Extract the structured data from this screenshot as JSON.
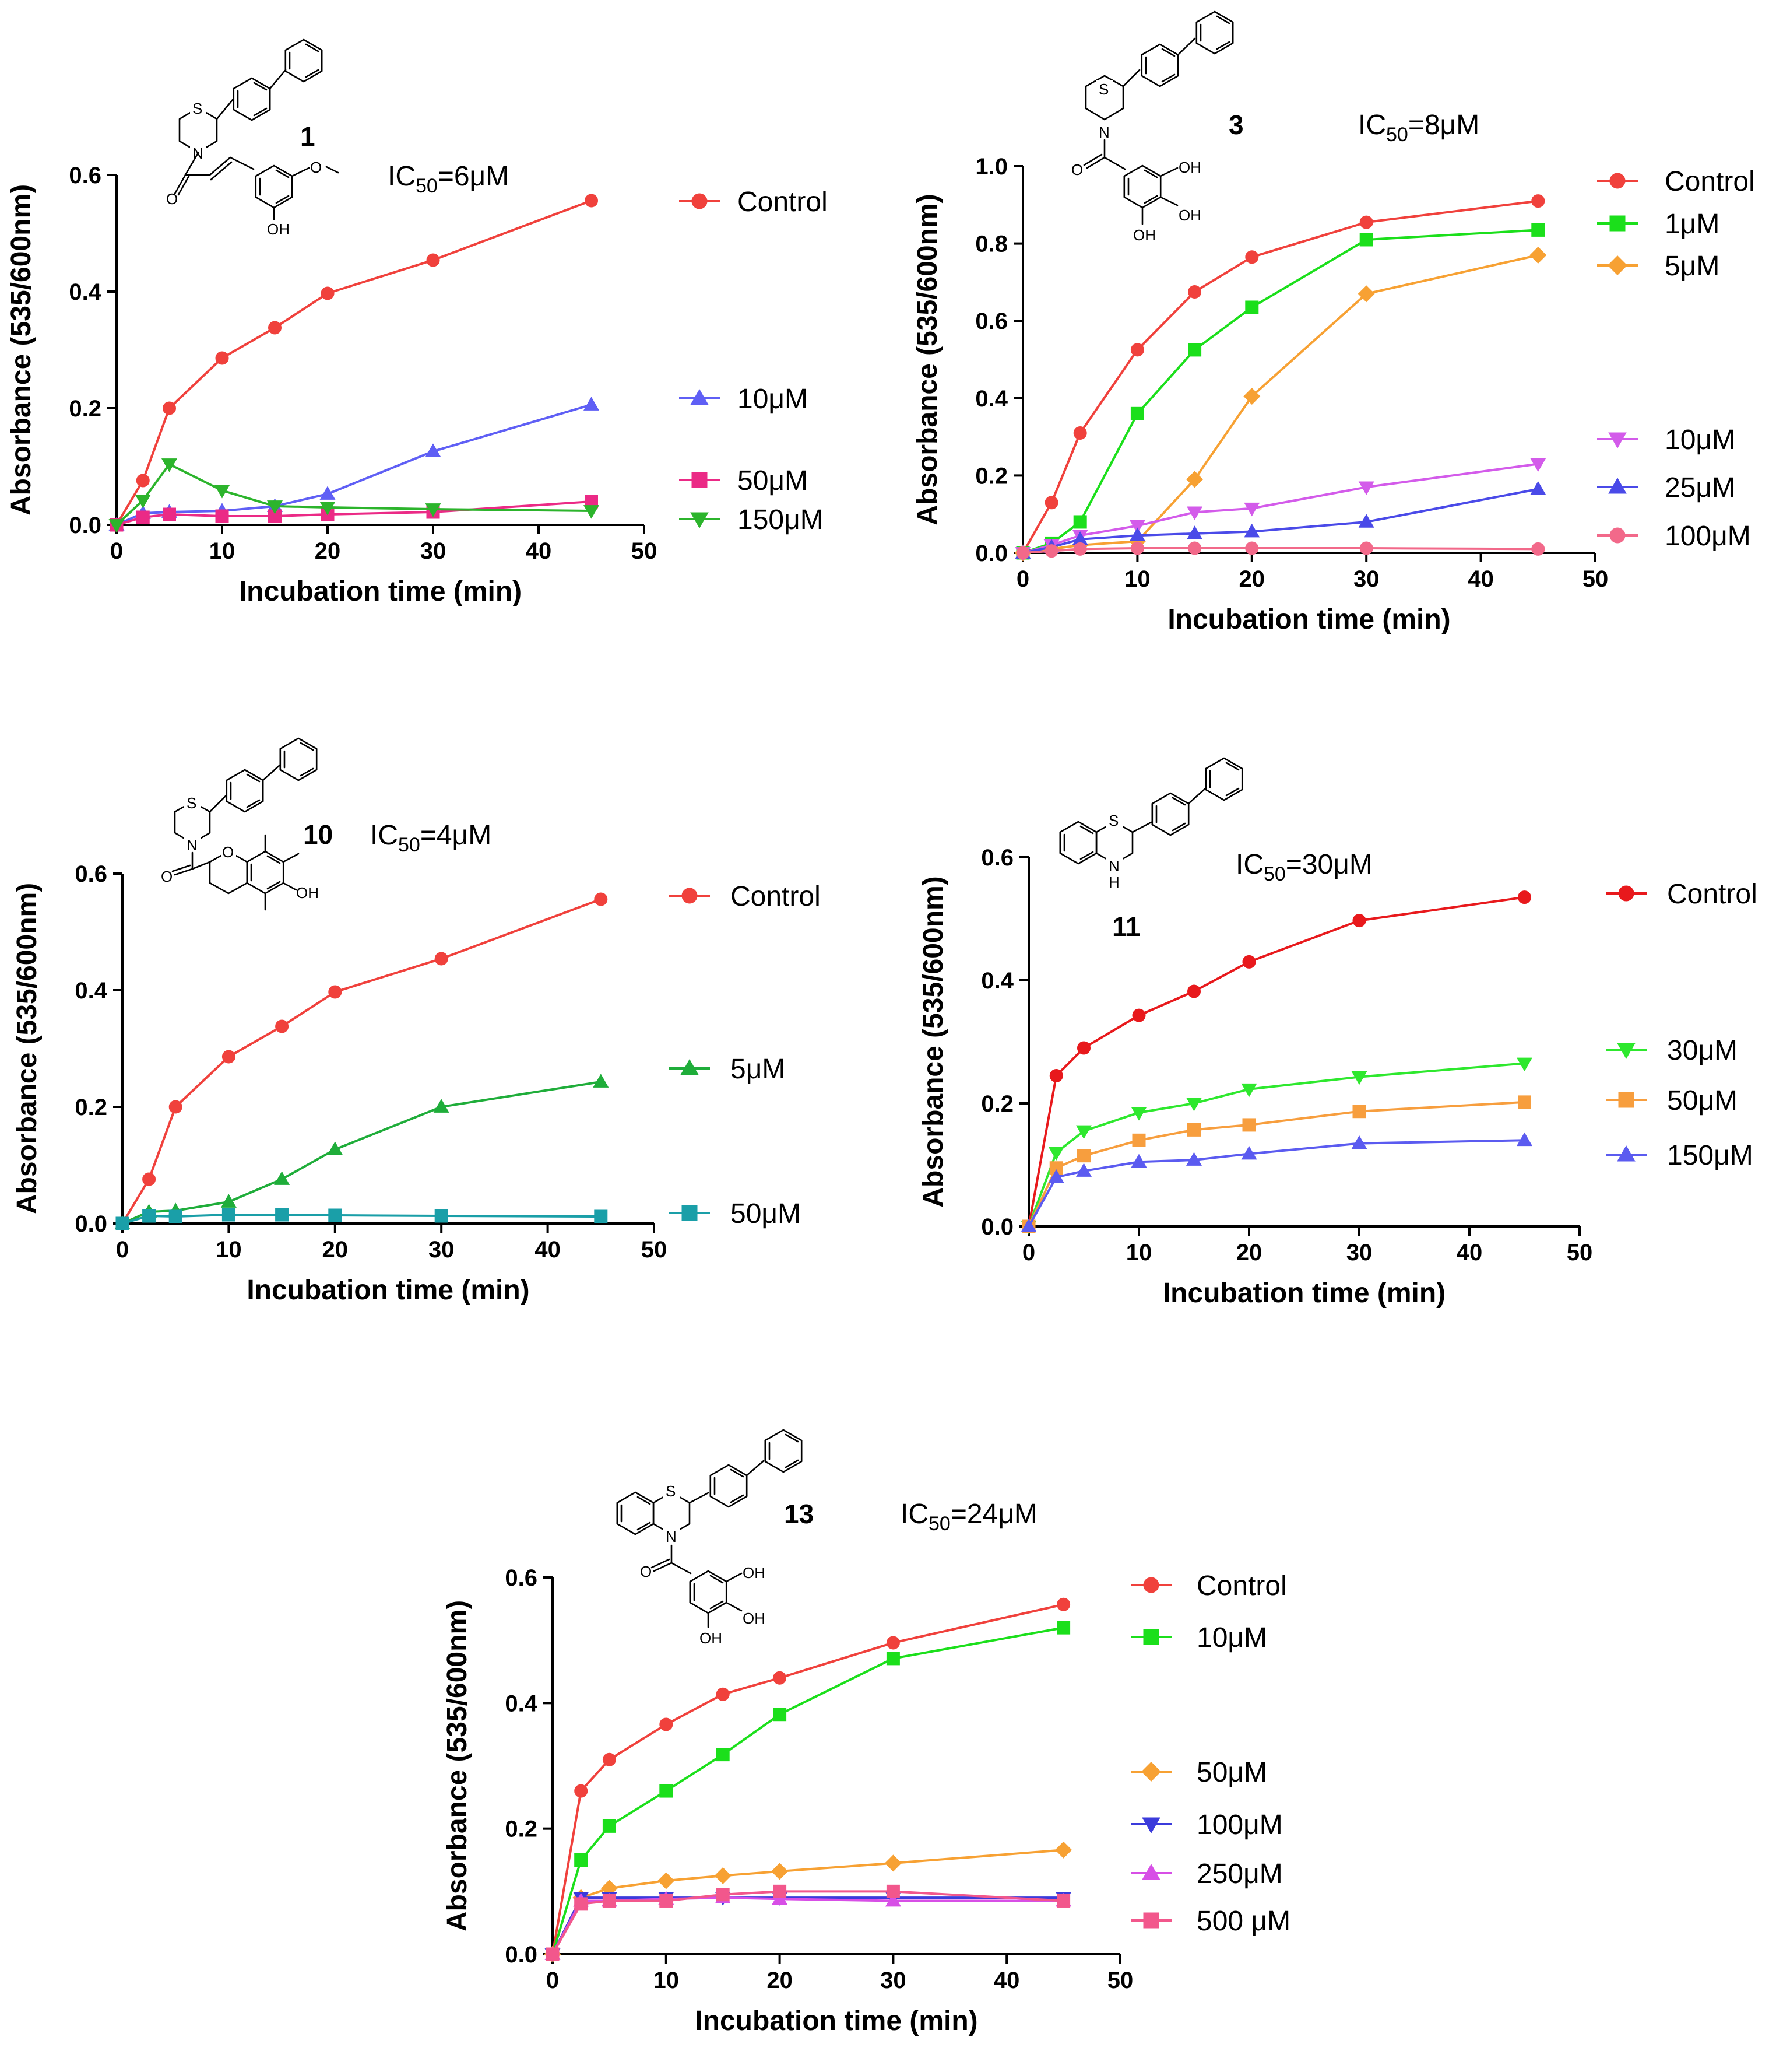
{
  "chart_data": [
    {
      "type": "line",
      "compound": "1",
      "ic50": {
        "prefix": "IC",
        "sub": "50",
        "value": "=6μM"
      },
      "xlabel": "Incubation time (min)",
      "ylabel": "Absorbance (535/600nm)",
      "xlim": [
        0,
        50
      ],
      "ylim": [
        0,
        0.6
      ],
      "xticks": [
        0,
        10,
        20,
        30,
        40,
        50
      ],
      "yticks": [
        0.0,
        0.2,
        0.4,
        0.6
      ],
      "ytick_labels": [
        "0.0",
        "0.2",
        "0.4",
        "0.6"
      ],
      "x": [
        0,
        2.5,
        5,
        10,
        15,
        20,
        30,
        45
      ],
      "series": [
        {
          "name": "Control",
          "color": "#f0413c",
          "marker": "circle",
          "values": [
            0,
            0.076,
            0.2,
            0.286,
            0.338,
            0.397,
            0.454,
            0.556
          ]
        },
        {
          "name": "10μM",
          "color": "#5f5ff5",
          "marker": "triangle-up",
          "values": [
            0,
            0.02,
            0.022,
            0.024,
            0.032,
            0.053,
            0.126,
            0.206
          ]
        },
        {
          "name": "50μM",
          "color": "#eb2a86",
          "marker": "square",
          "values": [
            0,
            0.013,
            0.018,
            0.015,
            0.015,
            0.018,
            0.022,
            0.04
          ]
        },
        {
          "name": "150μM",
          "color": "#2cb42c",
          "marker": "triangle-down",
          "values": [
            0,
            0.042,
            0.104,
            0.059,
            0.032,
            0.03,
            0.027,
            0.024
          ]
        }
      ]
    },
    {
      "type": "line",
      "compound": "3",
      "ic50": {
        "prefix": "IC",
        "sub": "50",
        "value": "=8μM"
      },
      "xlabel": "Incubation time (min)",
      "ylabel": "Absorbance (535/600nm)",
      "xlim": [
        0,
        50
      ],
      "ylim": [
        0,
        1.0
      ],
      "xticks": [
        0,
        10,
        20,
        30,
        40,
        50
      ],
      "yticks": [
        0.0,
        0.2,
        0.4,
        0.6,
        0.8,
        1.0
      ],
      "ytick_labels": [
        "0.0",
        "0.2",
        "0.4",
        "0.6",
        "0.8",
        "1.0"
      ],
      "x": [
        0,
        2.5,
        5,
        10,
        15,
        20,
        30,
        45
      ],
      "series": [
        {
          "name": "Control",
          "color": "#f0413c",
          "marker": "circle",
          "values": [
            0,
            0.13,
            0.31,
            0.525,
            0.675,
            0.765,
            0.855,
            0.91
          ]
        },
        {
          "name": "1μM",
          "color": "#1bdf1b",
          "marker": "square",
          "values": [
            0,
            0.025,
            0.08,
            0.36,
            0.525,
            0.635,
            0.81,
            0.835
          ]
        },
        {
          "name": "5μM",
          "color": "#f7a133",
          "marker": "diamond",
          "values": [
            0,
            0.01,
            0.02,
            0.03,
            0.19,
            0.405,
            0.67,
            0.77
          ]
        },
        {
          "name": "10μM",
          "color": "#d35bea",
          "marker": "triangle-down",
          "values": [
            0,
            0.02,
            0.045,
            0.07,
            0.105,
            0.115,
            0.17,
            0.23
          ]
        },
        {
          "name": "25μM",
          "color": "#4a4ae8",
          "marker": "triangle-up",
          "values": [
            0,
            0.015,
            0.035,
            0.045,
            0.05,
            0.055,
            0.08,
            0.165
          ]
        },
        {
          "name": "100μM",
          "color": "#f2698a",
          "marker": "circle",
          "values": [
            0,
            0.005,
            0.01,
            0.012,
            0.012,
            0.012,
            0.012,
            0.01
          ]
        }
      ]
    },
    {
      "type": "line",
      "compound": "10",
      "ic50": {
        "prefix": "IC",
        "sub": "50",
        "value": "=4μM"
      },
      "xlabel": "Incubation time (min)",
      "ylabel": "Absorbance (535/600nm)",
      "xlim": [
        0,
        50
      ],
      "ylim": [
        0,
        0.6
      ],
      "xticks": [
        0,
        10,
        20,
        30,
        40,
        50
      ],
      "yticks": [
        0.0,
        0.2,
        0.4,
        0.6
      ],
      "ytick_labels": [
        "0.0",
        "0.2",
        "0.4",
        "0.6"
      ],
      "x": [
        0,
        2.5,
        5,
        10,
        15,
        20,
        30,
        45
      ],
      "series": [
        {
          "name": "Control",
          "color": "#f0413c",
          "marker": "circle",
          "values": [
            0,
            0.076,
            0.2,
            0.286,
            0.338,
            0.397,
            0.454,
            0.556
          ]
        },
        {
          "name": "5μM",
          "color": "#1fad3a",
          "marker": "triangle-up",
          "values": [
            0,
            0.02,
            0.022,
            0.037,
            0.076,
            0.127,
            0.2,
            0.243
          ]
        },
        {
          "name": "50μM",
          "color": "#1a9fa8",
          "marker": "square",
          "values": [
            0,
            0.013,
            0.012,
            0.015,
            0.015,
            0.014,
            0.013,
            0.012
          ]
        }
      ]
    },
    {
      "type": "line",
      "compound": "11",
      "ic50": {
        "prefix": "IC",
        "sub": "50",
        "value": "=30μM"
      },
      "xlabel": "Incubation time (min)",
      "ylabel": "Absorbance (535/600nm)",
      "xlim": [
        0,
        50
      ],
      "ylim": [
        0,
        0.6
      ],
      "xticks": [
        0,
        10,
        20,
        30,
        40,
        50
      ],
      "yticks": [
        0.0,
        0.2,
        0.4,
        0.6
      ],
      "ytick_labels": [
        "0.0",
        "0.2",
        "0.4",
        "0.6"
      ],
      "x": [
        0,
        2.5,
        5,
        10,
        15,
        20,
        30,
        45
      ],
      "series": [
        {
          "name": "Control",
          "color": "#e8191c",
          "marker": "circle",
          "values": [
            0,
            0.245,
            0.29,
            0.343,
            0.382,
            0.43,
            0.497,
            0.535
          ]
        },
        {
          "name": "30μM",
          "color": "#2ee82e",
          "marker": "triangle-down",
          "values": [
            0,
            0.12,
            0.155,
            0.185,
            0.2,
            0.223,
            0.243,
            0.265
          ]
        },
        {
          "name": "50μM",
          "color": "#f79e3e",
          "marker": "square",
          "values": [
            0,
            0.095,
            0.115,
            0.14,
            0.157,
            0.165,
            0.187,
            0.202
          ]
        },
        {
          "name": "150μM",
          "color": "#5b5bf0",
          "marker": "triangle-up",
          "values": [
            0,
            0.08,
            0.09,
            0.105,
            0.108,
            0.118,
            0.135,
            0.14
          ]
        }
      ]
    },
    {
      "type": "line",
      "compound": "13",
      "ic50": {
        "prefix": "IC",
        "sub": "50",
        "value": "=24μM"
      },
      "xlabel": "Incubation time (min)",
      "ylabel": "Absorbance (535/600nm)",
      "xlim": [
        0,
        50
      ],
      "ylim": [
        0,
        0.6
      ],
      "xticks": [
        0,
        10,
        20,
        30,
        40,
        50
      ],
      "yticks": [
        0.0,
        0.2,
        0.4,
        0.6
      ],
      "ytick_labels": [
        "0.0",
        "0.2",
        "0.4",
        "0.6"
      ],
      "x": [
        0,
        2.5,
        5,
        10,
        15,
        20,
        30,
        45
      ],
      "series": [
        {
          "name": "Control",
          "color": "#f0413c",
          "marker": "circle",
          "values": [
            0,
            0.26,
            0.31,
            0.366,
            0.414,
            0.44,
            0.496,
            0.557
          ]
        },
        {
          "name": "10μM",
          "color": "#1bdf1b",
          "marker": "square",
          "values": [
            0,
            0.15,
            0.204,
            0.26,
            0.318,
            0.382,
            0.471,
            0.52
          ]
        },
        {
          "name": "50μM",
          "color": "#f7a133",
          "marker": "diamond",
          "values": [
            0,
            0.09,
            0.105,
            0.117,
            0.125,
            0.132,
            0.145,
            0.166
          ]
        },
        {
          "name": "100μM",
          "color": "#3b3bdb",
          "marker": "triangle-down",
          "values": [
            0,
            0.09,
            0.09,
            0.09,
            0.09,
            0.09,
            0.09,
            0.09
          ]
        },
        {
          "name": "250μM",
          "color": "#d74fe6",
          "marker": "triangle-up",
          "values": [
            0,
            0.085,
            0.085,
            0.088,
            0.09,
            0.088,
            0.085,
            0.085
          ]
        },
        {
          "name": "500 μM",
          "color": "#f2578c",
          "marker": "square",
          "values": [
            0,
            0.08,
            0.085,
            0.085,
            0.095,
            0.1,
            0.1,
            0.085
          ]
        }
      ]
    }
  ],
  "structure_atoms": {
    "S": "S",
    "N": "N",
    "NH": "H",
    "O": "O",
    "OH": "OH"
  }
}
